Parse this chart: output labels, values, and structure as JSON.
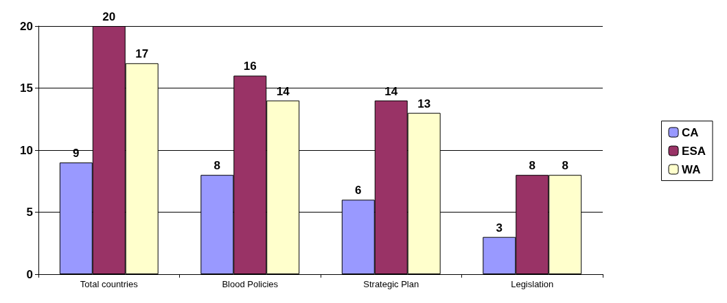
{
  "chart_data": {
    "type": "bar",
    "categories": [
      "Total countries",
      "Blood Policies",
      "Strategic Plan",
      "Legislation"
    ],
    "series": [
      {
        "name": "CA",
        "color": "#9999ff",
        "values": [
          9,
          8,
          6,
          3
        ]
      },
      {
        "name": "ESA",
        "color": "#993366",
        "values": [
          20,
          16,
          14,
          8
        ]
      },
      {
        "name": "WA",
        "color": "#ffffcc",
        "values": [
          17,
          14,
          13,
          8
        ]
      }
    ],
    "ylim": [
      0,
      20
    ],
    "yticks": [
      0,
      5,
      10,
      15,
      20
    ],
    "grid": "y",
    "legend": "right",
    "data_labels": true
  }
}
